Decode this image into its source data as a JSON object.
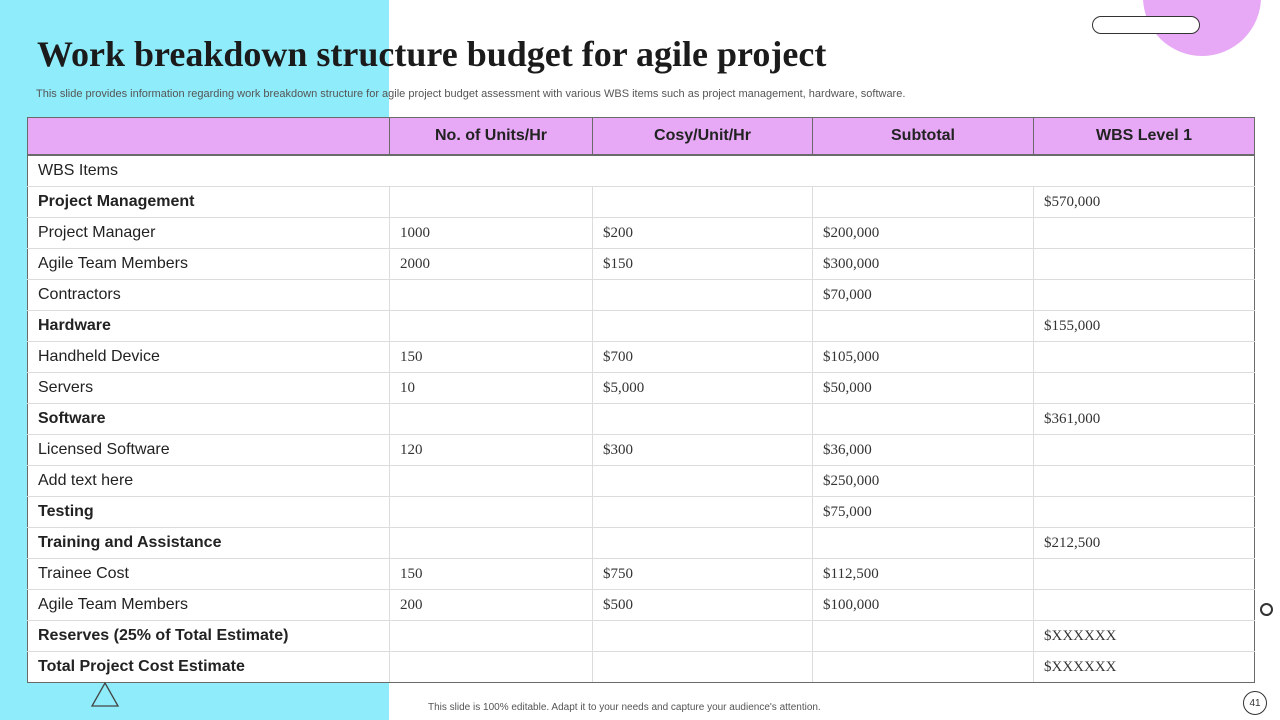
{
  "slide": {
    "title": "Work breakdown structure budget for agile project",
    "subtitle": "This slide provides information regarding work breakdown structure for agile project budget assessment with various WBS items such as project management, hardware, software.",
    "footer": "This slide is 100% editable. Adapt it to your needs and capture your audience's attention.",
    "page_number": "41"
  },
  "table": {
    "headers": [
      "",
      "No. of Units/Hr",
      "Cosy/Unit/Hr",
      "Subtotal",
      "WBS Level 1"
    ],
    "rows": [
      {
        "name": "WBS Items",
        "units": "",
        "cost": "",
        "subtotal": "",
        "level1": "",
        "bold": false,
        "span": true
      },
      {
        "name": "Project Management",
        "units": "",
        "cost": "",
        "subtotal": "",
        "level1": "$570,000",
        "bold": true
      },
      {
        "name": "Project Manager",
        "units": "1000",
        "cost": "$200",
        "subtotal": "$200,000",
        "level1": "",
        "bold": false
      },
      {
        "name": "Agile Team Members",
        "units": "2000",
        "cost": "$150",
        "subtotal": "$300,000",
        "level1": "",
        "bold": false
      },
      {
        "name": "Contractors",
        "units": "",
        "cost": "",
        "subtotal": "$70,000",
        "level1": "",
        "bold": false
      },
      {
        "name": "Hardware",
        "units": "",
        "cost": "",
        "subtotal": "",
        "level1": "$155,000",
        "bold": true
      },
      {
        "name": "Handheld Device",
        "units": "150",
        "cost": "$700",
        "subtotal": "$105,000",
        "level1": "",
        "bold": false
      },
      {
        "name": "Servers",
        "units": "10",
        "cost": "$5,000",
        "subtotal": "$50,000",
        "level1": "",
        "bold": false
      },
      {
        "name": "Software",
        "units": "",
        "cost": "",
        "subtotal": "",
        "level1": "$361,000",
        "bold": true
      },
      {
        "name": "Licensed Software",
        "units": "120",
        "cost": "$300",
        "subtotal": "$36,000",
        "level1": "",
        "bold": false
      },
      {
        "name": "Add text here",
        "units": "",
        "cost": "",
        "subtotal": "$250,000",
        "level1": "",
        "bold": false
      },
      {
        "name": "Testing",
        "units": "",
        "cost": "",
        "subtotal": "$75,000",
        "level1": "",
        "bold": true
      },
      {
        "name": "Training and Assistance",
        "units": "",
        "cost": "",
        "subtotal": "",
        "level1": "$212,500",
        "bold": true
      },
      {
        "name": "Trainee  Cost",
        "units": "150",
        "cost": "$750",
        "subtotal": "$112,500",
        "level1": "",
        "bold": false
      },
      {
        "name": "Agile Team Members",
        "units": "200",
        "cost": "$500",
        "subtotal": "$100,000",
        "level1": "",
        "bold": false
      },
      {
        "name": "Reserves (25% of Total Estimate)",
        "units": "",
        "cost": "",
        "subtotal": "",
        "level1": "$XXXXXX",
        "bold": true
      },
      {
        "name": "Total Project Cost Estimate",
        "units": "",
        "cost": "",
        "subtotal": "",
        "level1": "$XXXXXX",
        "bold": true
      }
    ]
  },
  "colors": {
    "accent_cyan": "#8fecfb",
    "accent_pink": "#e7a9f6"
  },
  "icons": [
    "triangle-icon",
    "ring-icon",
    "pill-shape"
  ]
}
